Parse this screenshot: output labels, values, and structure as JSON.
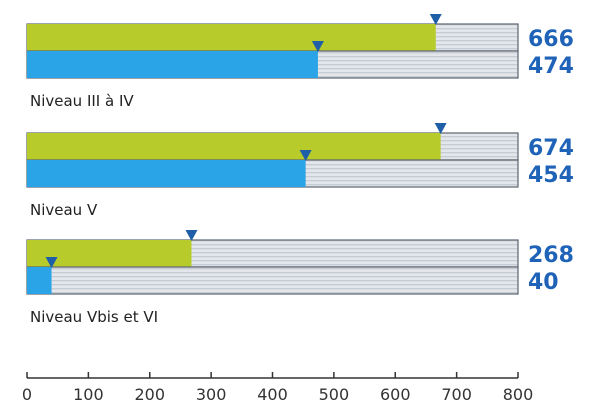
{
  "chart_data": {
    "type": "bar",
    "orientation": "horizontal",
    "categories": [
      "Niveau III à IV",
      "Niveau V",
      "Niveau Vbis et VI"
    ],
    "series": [
      {
        "values": [
          666,
          674,
          268
        ],
        "color": "#b7cc2a"
      },
      {
        "values": [
          474,
          454,
          40
        ],
        "color": "#2aa4e6"
      }
    ],
    "xlim": [
      0,
      800
    ],
    "xticks": [
      0,
      100,
      200,
      300,
      400,
      500,
      600,
      700,
      800
    ],
    "xlabel": "",
    "ylabel": "",
    "title": "",
    "value_label_color": "#1f63b8",
    "background_bar_color": "#d9dde2",
    "marker_color": "#1f5fa8",
    "grid": false,
    "legend": "none"
  }
}
